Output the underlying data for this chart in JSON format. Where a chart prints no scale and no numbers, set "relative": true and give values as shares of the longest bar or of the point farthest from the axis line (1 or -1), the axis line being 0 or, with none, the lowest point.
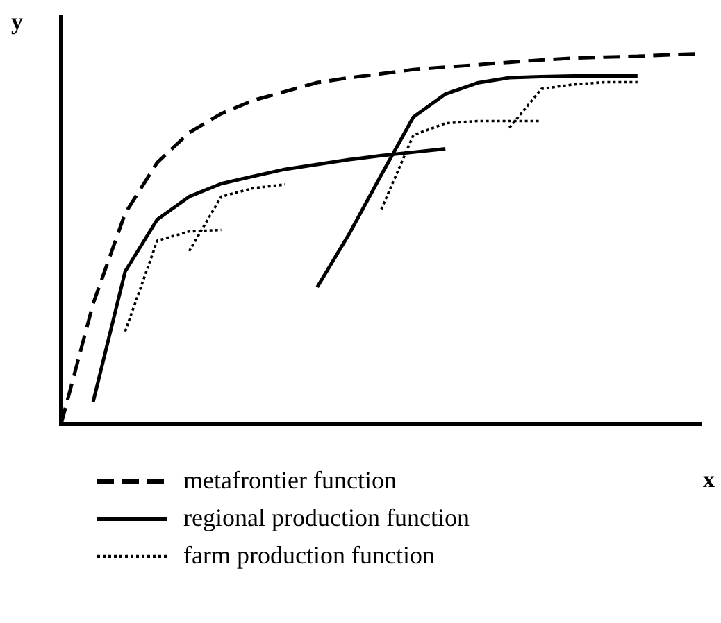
{
  "chart_data": {
    "type": "line",
    "xlabel": "x",
    "ylabel": "y",
    "relative": true,
    "grid": false,
    "legend": "bottom",
    "marker": "none",
    "categories": [
      null,
      null,
      null,
      null,
      null,
      null,
      null,
      null,
      null,
      null,
      null,
      null,
      null,
      null,
      null,
      null,
      null,
      null,
      null,
      null,
      null
    ],
    "series": [
      {
        "name": "metafrontier function",
        "color": "#000000",
        "line_style": "dashed",
        "values": [
          0,
          0.325,
          0.569,
          0.706,
          0.787,
          0.838,
          0.874,
          0.898,
          0.922,
          0.935,
          0.946,
          0.957,
          0.964,
          0.97,
          0.977,
          0.983,
          0.988,
          0.991,
          0.993,
          0.997,
          1
        ]
      },
      {
        "name": "regional production function",
        "color": "#000000",
        "line_style": "solid",
        "values": [
          null,
          0.06,
          0.412,
          0.552,
          0.614,
          0.649,
          0.669,
          0.688,
          0.701,
          0.714,
          0.725,
          0.734,
          0.743,
          null,
          null,
          null,
          null,
          null,
          null,
          null,
          null
        ]
      },
      {
        "color": "#000000",
        "line_style": "solid",
        "values": [
          null,
          null,
          null,
          null,
          null,
          null,
          null,
          null,
          0.37,
          0.514,
          0.673,
          0.829,
          0.891,
          0.921,
          0.935,
          0.938,
          0.94,
          0.94,
          0.94,
          null,
          null
        ]
      },
      {
        "name": "farm production function",
        "color": "#000000",
        "line_style": "dotted",
        "values": [
          null,
          null,
          0.25,
          0.495,
          0.52,
          0.524,
          null,
          null,
          null,
          null,
          null,
          null,
          null,
          null,
          null,
          null,
          null,
          null,
          null,
          null,
          null
        ]
      },
      {
        "color": "#000000",
        "line_style": "dotted",
        "values": [
          null,
          null,
          null,
          null,
          0.467,
          0.614,
          0.637,
          0.647,
          null,
          null,
          null,
          null,
          null,
          null,
          null,
          null,
          null,
          null,
          null,
          null,
          null
        ]
      },
      {
        "color": "#000000",
        "line_style": "dotted",
        "values": [
          null,
          null,
          null,
          null,
          null,
          null,
          null,
          null,
          null,
          null,
          0.58,
          0.78,
          0.812,
          0.818,
          0.818,
          0.818,
          null,
          null,
          null,
          null,
          null
        ]
      },
      {
        "color": "#000000",
        "line_style": "dotted",
        "values": [
          null,
          null,
          null,
          null,
          null,
          null,
          null,
          null,
          null,
          null,
          null,
          null,
          null,
          null,
          0.8,
          0.905,
          0.917,
          0.923,
          0.923,
          null,
          null
        ]
      }
    ]
  }
}
